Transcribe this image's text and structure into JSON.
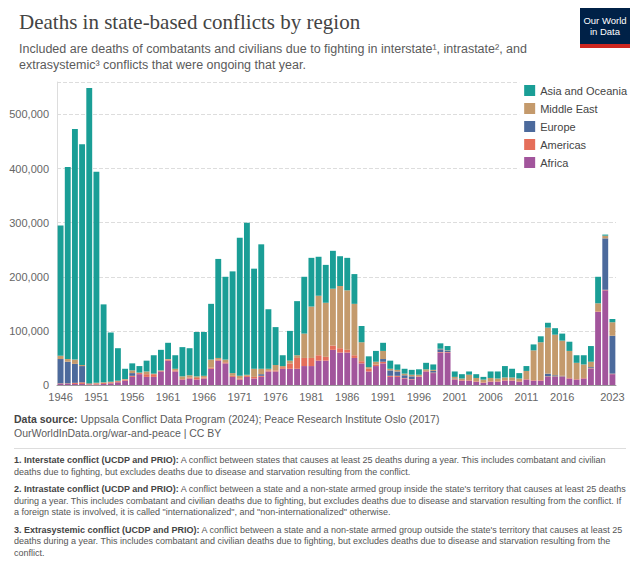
{
  "chart_data": {
    "type": "bar",
    "title": "Deaths in state-based conflicts by region",
    "subtitle": "Included are deaths of combatants and civilians due to fighting in interstate¹, intrastate², and extrasystemic³ conflicts that were ongoing that year.",
    "logo": "Our World in Data",
    "source_label": "Data source:",
    "source": "Uppsala Conflict Data Program (2024); Peace Research Institute Oslo (2017)",
    "url": "OurWorldInData.org/war-and-peace | CC BY",
    "footnotes": [
      {
        "term": "1. Interstate conflict (UCDP and PRIO):",
        "text": "A conflict between states that causes at least 25 deaths during a year. This includes combatant and civilian deaths due to fighting, but excludes deaths due to disease and starvation resulting from the conflict."
      },
      {
        "term": "2. Intrastate conflict (UCDP and PRIO):",
        "text": "A conflict between a state and a non-state armed group inside the state's territory that causes at least 25 deaths during a year. This includes combatant and civilian deaths due to fighting, but excludes deaths due to disease and starvation resulting from the conflict. If a foreign state is involved, it is called \"internationalized\", and \"non-internationalized\" otherwise."
      },
      {
        "term": "3. Extrasystemic conflict (UCDP and PRIO):",
        "text": "A conflict between a state and a non-state armed group outside the state's territory that causes at least 25 deaths during a year. This includes combatant and civilian deaths due to fighting, but excludes deaths due to disease and starvation resulting from the conflict."
      }
    ],
    "stacked": true,
    "grid": true,
    "legend": "top-right",
    "categories": [
      "1946",
      null,
      null,
      null,
      null,
      "1951",
      null,
      null,
      null,
      null,
      "1956",
      null,
      null,
      null,
      null,
      "1961",
      null,
      null,
      null,
      null,
      "1966",
      null,
      null,
      null,
      null,
      "1971",
      null,
      null,
      null,
      null,
      "1976",
      null,
      null,
      null,
      null,
      "1981",
      null,
      null,
      null,
      null,
      "1986",
      null,
      null,
      null,
      null,
      "1991",
      null,
      null,
      null,
      null,
      "1996",
      null,
      null,
      null,
      null,
      "2001",
      null,
      null,
      null,
      null,
      "2006",
      null,
      null,
      null,
      null,
      "2011",
      null,
      null,
      null,
      null,
      "2016",
      null,
      null,
      null,
      null,
      null,
      null,
      "2023"
    ],
    "ylim": [
      0,
      560000
    ],
    "yticks": [
      0,
      {
        "value": 100000,
        "label": "100,000"
      },
      {
        "value": 200000,
        "label": "200,000"
      },
      {
        "value": 300000,
        "label": "300,000"
      },
      {
        "value": 400000,
        "label": "400,000"
      },
      {
        "value": 500000,
        "label": "500,000"
      }
    ],
    "series": [
      {
        "name": "Asia and Oceania",
        "color": "#1a9e96",
        "values": [
          241000,
          355000,
          426000,
          408000,
          546000,
          390000,
          144000,
          91000,
          60000,
          19000,
          13000,
          12000,
          20000,
          34000,
          38000,
          30000,
          25000,
          54000,
          50000,
          82000,
          81000,
          103000,
          183000,
          153000,
          188000,
          255000,
          281000,
          185000,
          230000,
          110000,
          70000,
          20000,
          55000,
          100000,
          105000,
          90000,
          72000,
          70000,
          70000,
          55000,
          60000,
          55000,
          30000,
          20000,
          20000,
          15000,
          15000,
          10000,
          9000,
          9000,
          10000,
          12000,
          10000,
          10000,
          8000,
          10000,
          8000,
          6000,
          7000,
          5000,
          12000,
          13000,
          21000,
          16000,
          10000,
          9000,
          11000,
          11000,
          9000,
          12000,
          13000,
          17000,
          14000,
          17000,
          29000,
          49000,
          2000,
          6000
        ]
      },
      {
        "name": "Middle East",
        "color": "#c49a6c",
        "values": [
          6000,
          5000,
          8000,
          2000,
          0,
          1000,
          1000,
          1000,
          1000,
          1000,
          5000,
          1000,
          5000,
          1000,
          1000,
          1000,
          3000,
          5000,
          4000,
          3000,
          3000,
          15000,
          3000,
          5000,
          5000,
          5000,
          2000,
          15000,
          10000,
          3000,
          10000,
          2000,
          5000,
          5000,
          45000,
          95000,
          110000,
          100000,
          105000,
          115000,
          110000,
          95000,
          35000,
          3000,
          5000,
          15000,
          3000,
          3000,
          3000,
          3000,
          3000,
          3000,
          2000,
          1000,
          1000,
          3000,
          3000,
          10000,
          6000,
          5000,
          6000,
          5000,
          5000,
          5000,
          5000,
          15000,
          55000,
          70000,
          85000,
          75000,
          65000,
          50000,
          30000,
          25000,
          10000,
          15000,
          5000,
          25000
        ]
      },
      {
        "name": "Europe",
        "color": "#4c6a9c",
        "values": [
          45000,
          40000,
          35000,
          30000,
          0,
          0,
          0,
          0,
          0,
          0,
          5000,
          0,
          0,
          0,
          0,
          0,
          0,
          0,
          0,
          0,
          0,
          0,
          0,
          0,
          0,
          0,
          0,
          0,
          3000,
          0,
          0,
          0,
          0,
          0,
          0,
          0,
          0,
          0,
          0,
          0,
          0,
          0,
          0,
          0,
          0,
          5000,
          10000,
          8000,
          5000,
          5000,
          0,
          0,
          3000,
          5000,
          2000,
          1000,
          0,
          0,
          0,
          0,
          0,
          0,
          0,
          0,
          0,
          0,
          0,
          0,
          5000,
          2000,
          1000,
          0,
          0,
          0,
          2000,
          0,
          95000,
          70000
        ]
      },
      {
        "name": "Americas",
        "color": "#e56e5a",
        "values": [
          1000,
          1000,
          2000,
          3000,
          2000,
          2000,
          2000,
          2000,
          2000,
          2000,
          2000,
          2000,
          5000,
          5000,
          1000,
          2000,
          2000,
          1000,
          2000,
          3000,
          2000,
          2000,
          2000,
          2000,
          2000,
          2000,
          2000,
          3000,
          2000,
          2000,
          2000,
          3000,
          10000,
          20000,
          15000,
          15000,
          10000,
          7000,
          8000,
          8000,
          5000,
          5000,
          4000,
          5000,
          3000,
          3000,
          2000,
          2000,
          1000,
          1000,
          1000,
          1000,
          1000,
          1000,
          1000,
          1000,
          1000,
          1000,
          1000,
          1000,
          1000,
          1000,
          1000,
          1000,
          1000,
          1000,
          1000,
          1000,
          1000,
          1000,
          1000,
          1000,
          1000,
          1000,
          1000,
          1000,
          1000,
          1000
        ]
      },
      {
        "name": "Africa",
        "color": "#a2559c",
        "values": [
          2000,
          2000,
          2000,
          2000,
          1000,
          1000,
          2000,
          3000,
          5000,
          8000,
          15000,
          20000,
          15000,
          15000,
          25000,
          45000,
          25000,
          10000,
          12000,
          10000,
          12000,
          30000,
          45000,
          40000,
          15000,
          10000,
          15000,
          12000,
          15000,
          25000,
          25000,
          30000,
          30000,
          30000,
          35000,
          35000,
          45000,
          45000,
          65000,
          60000,
          60000,
          50000,
          40000,
          25000,
          35000,
          40000,
          15000,
          15000,
          12000,
          10000,
          15000,
          25000,
          22000,
          60000,
          60000,
          10000,
          8000,
          8000,
          6000,
          4000,
          6000,
          6000,
          8000,
          8000,
          6000,
          10000,
          8000,
          8000,
          15000,
          15000,
          15000,
          12000,
          10000,
          12000,
          30000,
          135000,
          175000,
          20000
        ]
      }
    ]
  }
}
